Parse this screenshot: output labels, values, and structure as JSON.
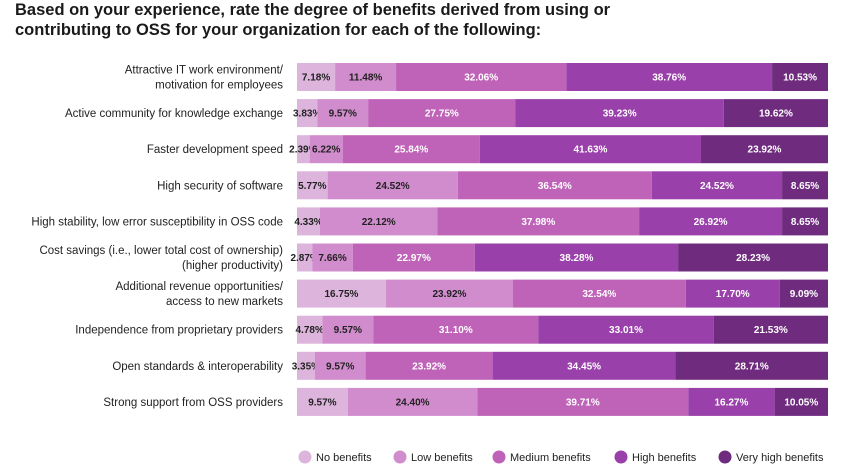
{
  "chart_data": {
    "type": "bar",
    "orientation": "horizontal-stacked-100",
    "title_lines": [
      "Based on your experience, rate the degree of benefits derived from using or",
      "contributing to OSS for your organization for each of the following:"
    ],
    "categories": [
      [
        "Attractive IT work environment/",
        "motivation for employees"
      ],
      [
        "Active community for knowledge exchange"
      ],
      [
        "Faster development speed"
      ],
      [
        "High security of software"
      ],
      [
        "High stability, low error susceptibility in OSS code"
      ],
      [
        "Cost savings (i.e., lower total cost of ownership)",
        "(higher productivity)"
      ],
      [
        "Additional revenue opportunities/",
        "access to new markets"
      ],
      [
        "Independence from proprietary providers"
      ],
      [
        "Open standards & interoperability"
      ],
      [
        "Strong support from OSS providers"
      ]
    ],
    "series": [
      {
        "name": "No benefits",
        "color": "#dcb4dc",
        "text_color": "#222222",
        "values": [
          7.18,
          3.83,
          2.39,
          5.77,
          4.33,
          2.87,
          16.75,
          4.78,
          3.35,
          9.57
        ],
        "labels": [
          "7.18%",
          "3.83%",
          "2.39%",
          "5.77%",
          "4.33%",
          "2.87%",
          "16.75%",
          "4.78%",
          "3.35%",
          "9.57%"
        ]
      },
      {
        "name": "Low benefits",
        "color": "#d08ccc",
        "text_color": "#222222",
        "values": [
          11.48,
          9.57,
          6.22,
          24.52,
          22.12,
          7.66,
          23.92,
          9.57,
          9.57,
          24.4
        ],
        "labels": [
          "11.48%",
          "9.57%",
          "6.22%",
          "24.52%",
          "22.12%",
          "7.66%",
          "23.92%",
          "9.57%",
          "9.57%",
          "24.40%"
        ]
      },
      {
        "name": "Medium benefits",
        "color": "#bf63b8",
        "text_color": "#ffffff",
        "values": [
          32.06,
          27.75,
          25.84,
          36.54,
          37.98,
          22.97,
          32.54,
          31.1,
          23.92,
          39.71
        ],
        "labels": [
          "32.06%",
          "27.75%",
          "25.84%",
          "36.54%",
          "37.98%",
          "22.97%",
          "32.54%",
          "31.10%",
          "23.92%",
          "39.71%"
        ]
      },
      {
        "name": "High benefits",
        "color": "#9a40aa",
        "text_color": "#ffffff",
        "values": [
          38.76,
          39.23,
          41.63,
          24.52,
          26.92,
          38.28,
          17.7,
          33.01,
          34.45,
          16.27
        ],
        "labels": [
          "38.76%",
          "39.23%",
          "41.63%",
          "24.52%",
          "26.92%",
          "38.28%",
          "17.70%",
          "33.01%",
          "34.45%",
          "16.27%"
        ]
      },
      {
        "name": "Very high benefits",
        "color": "#6f2c7f",
        "text_color": "#ffffff",
        "values": [
          10.53,
          19.62,
          23.92,
          8.65,
          8.65,
          28.23,
          9.09,
          21.53,
          28.71,
          10.05
        ],
        "labels": [
          "10.53%",
          "19.62%",
          "23.92%",
          "8.65%",
          "8.65%",
          "28.23%",
          "9.09%",
          "21.53%",
          "28.71%",
          "10.05%"
        ]
      }
    ],
    "xlim": [
      0,
      100
    ],
    "grid": false,
    "legend_position": "bottom"
  }
}
